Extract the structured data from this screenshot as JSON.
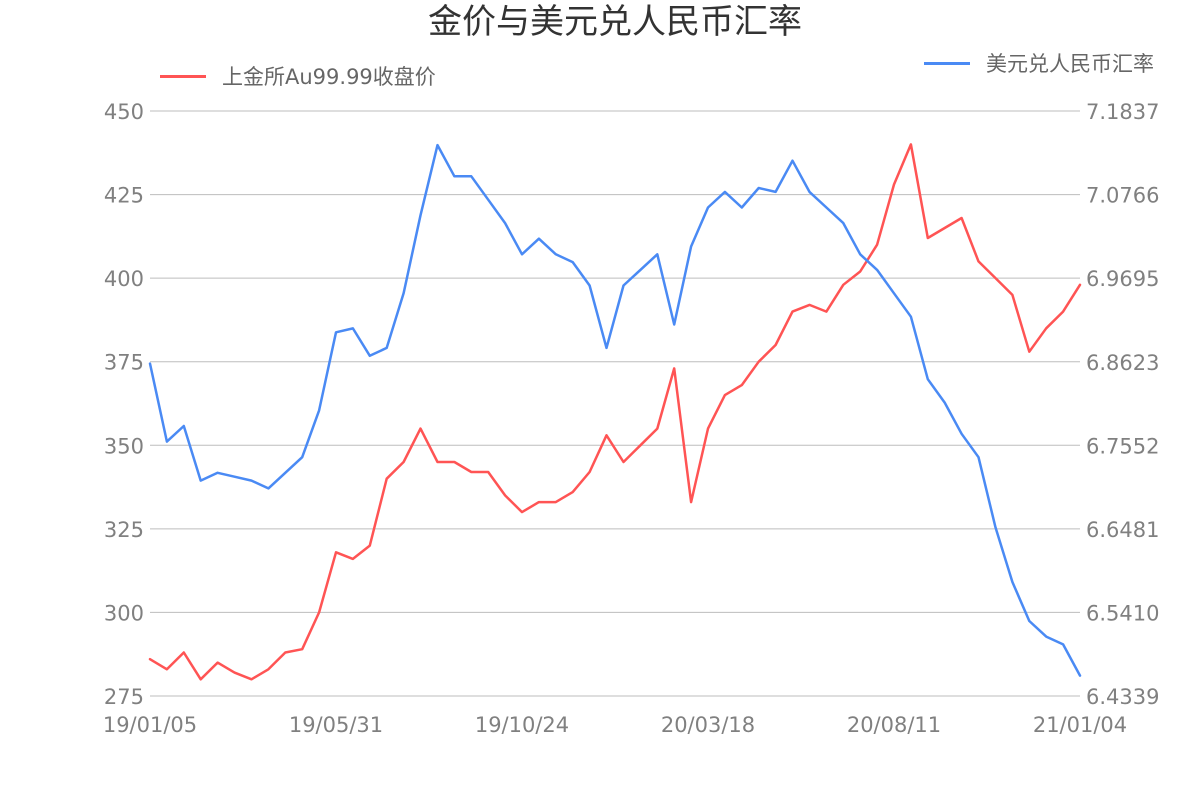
{
  "chart_data": {
    "type": "line",
    "title": "金价与美元兑人民币汇率",
    "legend": {
      "placement": "top",
      "entries": [
        "上金所Au99.99收盘价",
        "美元兑人民币汇率"
      ]
    },
    "grid": true,
    "x_ticks": [
      "19/01/05",
      "19/05/31",
      "19/10/24",
      "20/03/18",
      "20/08/11",
      "21/01/04"
    ],
    "y_left": {
      "ylim": [
        275,
        450
      ],
      "ticks": [
        "450",
        "425",
        "400",
        "375",
        "350",
        "325",
        "300",
        "275"
      ]
    },
    "y_right": {
      "ylim": [
        6.4339,
        7.1837
      ],
      "ticks": [
        "7.1837",
        "7.0766",
        "6.9695",
        "6.8623",
        "6.7552",
        "6.6481",
        "6.5410",
        "6.4339"
      ]
    },
    "x": [
      "19/01/05",
      "19/01/15",
      "19/02/01",
      "19/02/20",
      "19/03/10",
      "19/03/25",
      "19/04/10",
      "19/04/25",
      "19/05/10",
      "19/05/31",
      "19/06/15",
      "19/06/25",
      "19/07/05",
      "19/07/20",
      "19/08/01",
      "19/08/10",
      "19/08/20",
      "19/09/01",
      "19/09/15",
      "19/09/25",
      "19/10/05",
      "19/10/15",
      "19/10/24",
      "19/11/05",
      "19/11/20",
      "19/12/05",
      "19/12/20",
      "20/01/05",
      "20/01/20",
      "20/02/05",
      "20/02/20",
      "20/03/01",
      "20/03/10",
      "20/03/18",
      "20/03/25",
      "20/04/05",
      "20/04/20",
      "20/05/05",
      "20/05/20",
      "20/06/05",
      "20/06/20",
      "20/07/05",
      "20/07/20",
      "20/07/28",
      "20/08/05",
      "20/08/11",
      "20/08/20",
      "20/09/01",
      "20/09/15",
      "20/10/01",
      "20/10/15",
      "20/11/01",
      "20/11/15",
      "20/12/01",
      "20/12/15",
      "21/01/04"
    ],
    "series": [
      {
        "name": "上金所Au99.99收盘价",
        "color": "#ff5454",
        "axis": "left",
        "values": [
          286,
          283,
          288,
          280,
          285,
          282,
          280,
          283,
          288,
          289,
          300,
          318,
          316,
          320,
          340,
          345,
          355,
          345,
          345,
          342,
          342,
          335,
          330,
          333,
          333,
          336,
          342,
          353,
          345,
          350,
          355,
          373,
          333,
          355,
          365,
          368,
          375,
          380,
          390,
          392,
          390,
          398,
          402,
          410,
          428,
          440,
          412,
          415,
          418,
          405,
          400,
          395,
          378,
          385,
          390,
          398
        ]
      },
      {
        "name": "美元兑人民币汇率",
        "color": "#4a8af4",
        "axis": "right",
        "values": [
          6.86,
          6.76,
          6.78,
          6.71,
          6.72,
          6.715,
          6.71,
          6.7,
          6.72,
          6.74,
          6.8,
          6.9,
          6.905,
          6.87,
          6.88,
          6.95,
          7.05,
          7.14,
          7.1,
          7.1,
          7.07,
          7.04,
          7.0,
          7.02,
          7.0,
          6.99,
          6.96,
          6.88,
          6.96,
          6.98,
          7.0,
          6.91,
          7.01,
          7.06,
          7.08,
          7.06,
          7.085,
          7.08,
          7.12,
          7.08,
          7.06,
          7.04,
          7.0,
          6.98,
          6.95,
          6.92,
          6.84,
          6.81,
          6.77,
          6.74,
          6.65,
          6.58,
          6.53,
          6.51,
          6.5,
          6.46
        ]
      }
    ]
  }
}
